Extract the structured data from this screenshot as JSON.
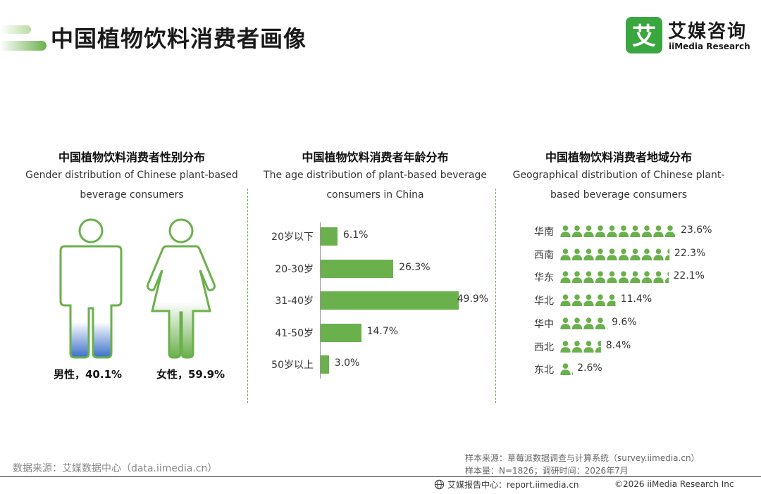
{
  "page": {
    "title": "中国植物饮料消费者画像"
  },
  "logo": {
    "mark_char": "艾",
    "cn": "艾媒咨询",
    "en": "iiMedia Research"
  },
  "colors": {
    "brand_green": "#3aa640",
    "bar_green": "#6ab04c",
    "male_blue": "#3b6fc9",
    "outline_green": "#6ab04c"
  },
  "chart_data": [
    {
      "type": "pictogram",
      "title": "中国植物饮料消费者性别分布",
      "subtitle": "Gender distribution of Chinese plant-based beverage consumers",
      "categories": [
        "男性",
        "女性"
      ],
      "values": [
        40.1,
        59.9
      ],
      "unit": "%",
      "labels": [
        "男性，40.1%",
        "女性，59.9%"
      ],
      "icons": [
        "male-figure-icon",
        "female-figure-icon"
      ]
    },
    {
      "type": "bar",
      "orientation": "horizontal",
      "title": "中国植物饮料消费者年龄分布",
      "subtitle": "The age distribution of plant-based beverage consumers in China",
      "categories": [
        "20岁以下",
        "20-30岁",
        "31-40岁",
        "41-50岁",
        "50岁以上"
      ],
      "values": [
        6.1,
        26.3,
        49.9,
        14.7,
        3.0
      ],
      "value_labels": [
        "6.1%",
        "26.3%",
        "49.9%",
        "14.7%",
        "3.0%"
      ],
      "unit": "%",
      "xlim": [
        0,
        50
      ]
    },
    {
      "type": "pictogram",
      "title": "中国植物饮料消费者地域分布",
      "subtitle": "Geographical distribution of Chinese plant-based beverage consumers",
      "categories": [
        "华南",
        "西南",
        "华东",
        "华北",
        "华中",
        "西北",
        "东北"
      ],
      "values": [
        23.6,
        22.3,
        22.1,
        11.4,
        9.6,
        8.4,
        2.6
      ],
      "value_labels": [
        "23.6%",
        "22.3%",
        "22.1%",
        "11.4%",
        "9.6%",
        "8.4%",
        "2.6%"
      ],
      "unit": "%",
      "icon": "person-icon",
      "percent_per_icon": 2.36
    }
  ],
  "footer": {
    "source": "数据来源：艾媒数据中心（data.iimedia.cn）",
    "sample_source": "样本来源：草莓派数据调查与计算系统（survey.iimedia.cn）",
    "sample_info": "样本量：N=1826；调研时间：2026年7月",
    "report_center": "艾媒报告中心：report.iimedia.cn",
    "copyright": "©2026  iiMedia Research  Inc"
  }
}
